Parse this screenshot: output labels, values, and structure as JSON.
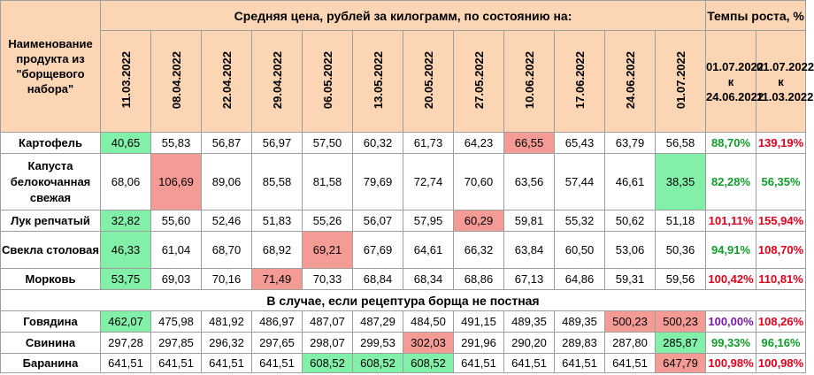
{
  "table": {
    "name_header": "Наименование продукта из \"борщевого набора\"",
    "price_header": "Средняя цена, рублей за килограмм, по состоянию на:",
    "growth_header": "Темпы роста, %",
    "dates": [
      "11.03.2022",
      "08.04.2022",
      "22.04.2022",
      "29.04.2022",
      "06.05.2022",
      "13.05.2022",
      "20.05.2022",
      "27.05.2022",
      "10.06.2022",
      "17.06.2022",
      "24.06.2022",
      "01.07.2022"
    ],
    "periods": [
      "01.07.2022 к 24.06.2022",
      "01.07.2022 к 11.03.2022"
    ],
    "section_label": "В случае, если рецептура борща не постная",
    "rows": [
      {
        "name": "Картофель",
        "values": [
          "40,65",
          "55,83",
          "56,87",
          "56,97",
          "57,50",
          "60,32",
          "61,73",
          "64,23",
          "66,55",
          "65,43",
          "63,79",
          "56,58"
        ],
        "g1": "88,70%",
        "g2": "139,19%"
      },
      {
        "name": "Капуста белокочанная свежая",
        "values": [
          "68,06",
          "106,69",
          "89,06",
          "85,58",
          "81,58",
          "79,69",
          "72,74",
          "70,60",
          "63,56",
          "57,44",
          "46,61",
          "38,35"
        ],
        "g1": "82,28%",
        "g2": "56,35%"
      },
      {
        "name": "Лук репчатый",
        "values": [
          "32,82",
          "55,60",
          "52,46",
          "51,83",
          "55,26",
          "56,07",
          "57,95",
          "60,29",
          "59,81",
          "55,32",
          "50,62",
          "51,18"
        ],
        "g1": "101,11%",
        "g2": "155,94%"
      },
      {
        "name": "Свекла столовая",
        "values": [
          "46,33",
          "61,04",
          "68,70",
          "68,92",
          "69,21",
          "67,69",
          "64,61",
          "66,32",
          "63,84",
          "60,50",
          "53,06",
          "50,36"
        ],
        "g1": "94,91%",
        "g2": "108,70%"
      },
      {
        "name": "Морковь",
        "values": [
          "53,75",
          "69,03",
          "70,16",
          "71,49",
          "70,33",
          "68,84",
          "68,34",
          "68,86",
          "67,13",
          "64,86",
          "59,31",
          "59,56"
        ],
        "g1": "100,42%",
        "g2": "110,81%"
      }
    ],
    "meat_rows": [
      {
        "name": "Говядина",
        "values": [
          "462,07",
          "475,98",
          "481,92",
          "486,97",
          "487,07",
          "487,29",
          "484,50",
          "491,15",
          "489,35",
          "489,35",
          "500,23",
          "500,23"
        ],
        "g1": "100,00%",
        "g2": "108,26%"
      },
      {
        "name": "Свинина",
        "values": [
          "297,28",
          "297,85",
          "296,32",
          "297,65",
          "298,07",
          "299,53",
          "302,03",
          "291,96",
          "290,20",
          "289,83",
          "287,80",
          "285,87"
        ],
        "g1": "99,33%",
        "g2": "96,16%"
      },
      {
        "name": "Баранина",
        "values": [
          "641,51",
          "641,51",
          "641,51",
          "641,51",
          "608,52",
          "608,52",
          "608,52",
          "641,51",
          "641,51",
          "641,51",
          "641,51",
          "647,79"
        ],
        "g1": "100,98%",
        "g2": "100,98%"
      }
    ]
  },
  "colors": {
    "header_bg": "#fcd5b4",
    "min_highlight": "#82f0a8",
    "max_highlight": "#f59b95",
    "growth_down": "#119c2a",
    "growth_up": "#e0001b",
    "growth_flat": "#7a1aa8"
  }
}
